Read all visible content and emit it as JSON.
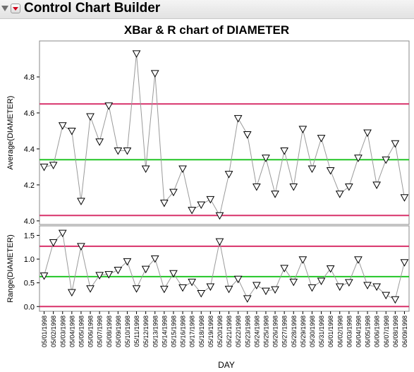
{
  "window": {
    "title": "Control Chart Builder"
  },
  "chart_data": {
    "type": "line",
    "title": "XBar & R chart of DIAMETER",
    "xlabel": "DAY",
    "categories": [
      "05/01/1998",
      "05/02/1998",
      "05/03/1998",
      "05/04/1998",
      "05/05/1998",
      "05/06/1998",
      "05/07/1998",
      "05/08/1998",
      "05/09/1998",
      "05/10/1998",
      "05/11/1998",
      "05/12/1998",
      "05/13/1998",
      "05/14/1998",
      "05/15/1998",
      "05/16/1998",
      "05/17/1998",
      "05/18/1998",
      "05/19/1998",
      "05/20/1998",
      "05/21/1998",
      "05/22/1998",
      "05/23/1998",
      "05/24/1998",
      "05/25/1998",
      "05/26/1998",
      "05/27/1998",
      "05/28/1998",
      "05/29/1998",
      "05/30/1998",
      "05/31/1998",
      "06/01/1998",
      "06/02/1998",
      "06/03/1998",
      "06/04/1998",
      "06/05/1998",
      "06/06/1998",
      "06/07/1998",
      "06/08/1998",
      "06/09/1998"
    ],
    "panels": [
      {
        "ylabel": "Average(DIAMETER)",
        "ylim": [
          3.98,
          5.0
        ],
        "yticks": [
          4.0,
          4.2,
          4.4,
          4.6,
          4.8
        ],
        "ytick_labels": [
          "4.0",
          "4.2",
          "4.4",
          "4.6",
          "4.8"
        ],
        "limits": {
          "ucl": 4.65,
          "center": 4.34,
          "lcl": 4.03
        },
        "values": [
          4.3,
          4.31,
          4.53,
          4.5,
          4.11,
          4.58,
          4.44,
          4.64,
          4.39,
          4.39,
          4.93,
          4.29,
          4.82,
          4.1,
          4.16,
          4.29,
          4.06,
          4.09,
          4.12,
          4.03,
          4.26,
          4.57,
          4.48,
          4.19,
          4.35,
          4.15,
          4.39,
          4.19,
          4.51,
          4.29,
          4.46,
          4.28,
          4.15,
          4.19,
          4.35,
          4.49,
          4.2,
          4.34,
          4.43,
          4.13
        ]
      },
      {
        "ylabel": "Range(DIAMETER)",
        "ylim": [
          -0.1,
          1.7
        ],
        "yticks": [
          0.0,
          0.5,
          1.0,
          1.5
        ],
        "ytick_labels": [
          "0.0",
          "0.5",
          "1.0",
          "1.5"
        ],
        "limits": {
          "ucl": 1.27,
          "center": 0.63,
          "lcl": 0.0
        },
        "values": [
          0.65,
          1.35,
          1.55,
          0.3,
          1.27,
          0.38,
          0.66,
          0.68,
          0.77,
          0.95,
          0.38,
          0.79,
          1.01,
          0.37,
          0.7,
          0.4,
          0.52,
          0.28,
          0.42,
          1.37,
          0.37,
          0.58,
          0.17,
          0.45,
          0.33,
          0.36,
          0.81,
          0.52,
          0.99,
          0.4,
          0.54,
          0.8,
          0.42,
          0.51,
          0.99,
          0.45,
          0.42,
          0.24,
          0.15,
          0.93
        ]
      }
    ],
    "colors": {
      "limit": "#d8326a",
      "center": "#22c626",
      "line": "#9a9a9a",
      "marker_fill": "#ffffff",
      "marker_stroke": "#000000"
    },
    "grid": false,
    "legend": "none"
  }
}
